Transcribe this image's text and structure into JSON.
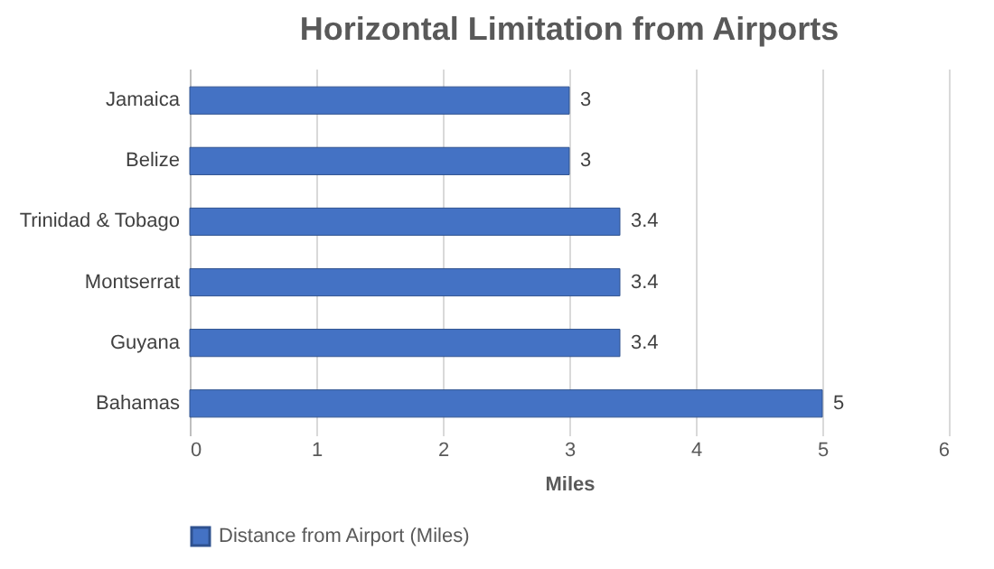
{
  "chart_data": {
    "type": "bar",
    "title": "Horizontal Limitation from Airports",
    "orientation": "horizontal",
    "xlabel": "Miles",
    "categories": [
      "Jamaica",
      "Belize",
      "Trinidad & Tobago",
      "Montserrat",
      "Guyana",
      "Bahamas"
    ],
    "series": [
      {
        "name": "Distance from Airport (Miles)",
        "color": "#4472c4",
        "values": [
          3,
          3,
          3.4,
          3.4,
          3.4,
          5
        ]
      }
    ],
    "xlim": [
      0,
      6
    ],
    "xticks": [
      0,
      1,
      2,
      3,
      4,
      5,
      6
    ],
    "grid": "x",
    "legend": "bottom",
    "data_labels": true
  }
}
